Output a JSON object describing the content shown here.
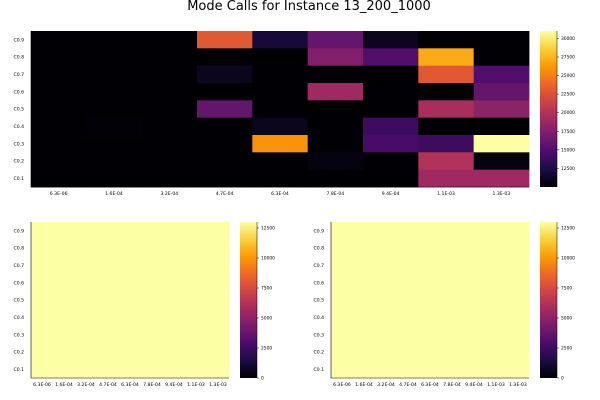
{
  "figure": {
    "title": "Mode Calls for Instance 13_200_1000",
    "colormap": "inferno",
    "colormap_stops": [
      "#000004",
      "#1b0c41",
      "#4a0c6b",
      "#781c6d",
      "#a52c60",
      "#cf4446",
      "#ed6925",
      "#fb9b06",
      "#f7d13d",
      "#fcffa4"
    ]
  },
  "chart_data": [
    {
      "type": "heatmap",
      "title": "Mode Calls for Instance 13_200_1000",
      "x_categories": [
        "6.3E-06",
        "1.6E-04",
        "3.2E-04",
        "4.7E-04",
        "6.3E-04",
        "7.8E-04",
        "9.4E-04",
        "1.1E-03",
        "1.3E-03"
      ],
      "y_categories": [
        "C0.9",
        "C0.8",
        "C0.7",
        "C0.6",
        "C0.5",
        "C0.4",
        "C0.3",
        "C0.2",
        "C0.1"
      ],
      "color_range": [
        10000,
        31000
      ],
      "colorbar_ticks": [
        "12500",
        "15000",
        "17500",
        "20000",
        "22500",
        "25000",
        "27500",
        "30000"
      ],
      "values": [
        [
          10000,
          10000,
          10000,
          23000,
          12000,
          16000,
          11000,
          10000,
          10000
        ],
        [
          10000,
          10000,
          10000,
          10000,
          10000,
          17500,
          15000,
          27000,
          10000
        ],
        [
          10000,
          10000,
          10000,
          11000,
          10000,
          10000,
          10000,
          23000,
          15000
        ],
        [
          10000,
          10000,
          10000,
          10000,
          10000,
          19000,
          10000,
          10000,
          16000
        ],
        [
          10000,
          10000,
          10000,
          16000,
          10000,
          10000,
          10000,
          19500,
          18000
        ],
        [
          10000,
          10200,
          10000,
          10000,
          11000,
          10000,
          14000,
          10000,
          10000
        ],
        [
          10000,
          10000,
          10000,
          10000,
          26000,
          10000,
          14500,
          14000,
          31000
        ],
        [
          10000,
          10000,
          10000,
          10000,
          10000,
          10500,
          10000,
          20000,
          10500
        ],
        [
          10000,
          10000,
          10000,
          10000,
          10000,
          10000,
          10000,
          19000,
          19000
        ]
      ]
    },
    {
      "type": "heatmap",
      "title": "",
      "x_categories": [
        "6.3E-06",
        "1.6E-04",
        "3.2E-04",
        "4.7E-04",
        "6.3E-04",
        "7.8E-04",
        "9.4E-04",
        "1.1E-03",
        "1.3E-03"
      ],
      "y_categories": [
        "C0.9",
        "C0.8",
        "C0.7",
        "C0.6",
        "C0.5",
        "C0.4",
        "C0.3",
        "C0.2",
        "C0.1"
      ],
      "color_range": [
        0,
        13000
      ],
      "colorbar_ticks": [
        "0",
        "2500",
        "5000",
        "7500",
        "10000",
        "12500"
      ],
      "uniform_value": 13000
    },
    {
      "type": "heatmap",
      "title": "",
      "x_categories": [
        "6.3E-06",
        "1.6E-04",
        "3.2E-04",
        "4.7E-04",
        "6.3E-04",
        "7.8E-04",
        "9.4E-04",
        "1.1E-03",
        "1.3E-03"
      ],
      "y_categories": [
        "C0.9",
        "C0.8",
        "C0.7",
        "C0.6",
        "C0.5",
        "C0.4",
        "C0.3",
        "C0.2",
        "C0.1"
      ],
      "color_range": [
        0,
        13000
      ],
      "colorbar_ticks": [
        "0",
        "2500",
        "5000",
        "7500",
        "10000",
        "12500"
      ],
      "uniform_value": 13000
    }
  ]
}
